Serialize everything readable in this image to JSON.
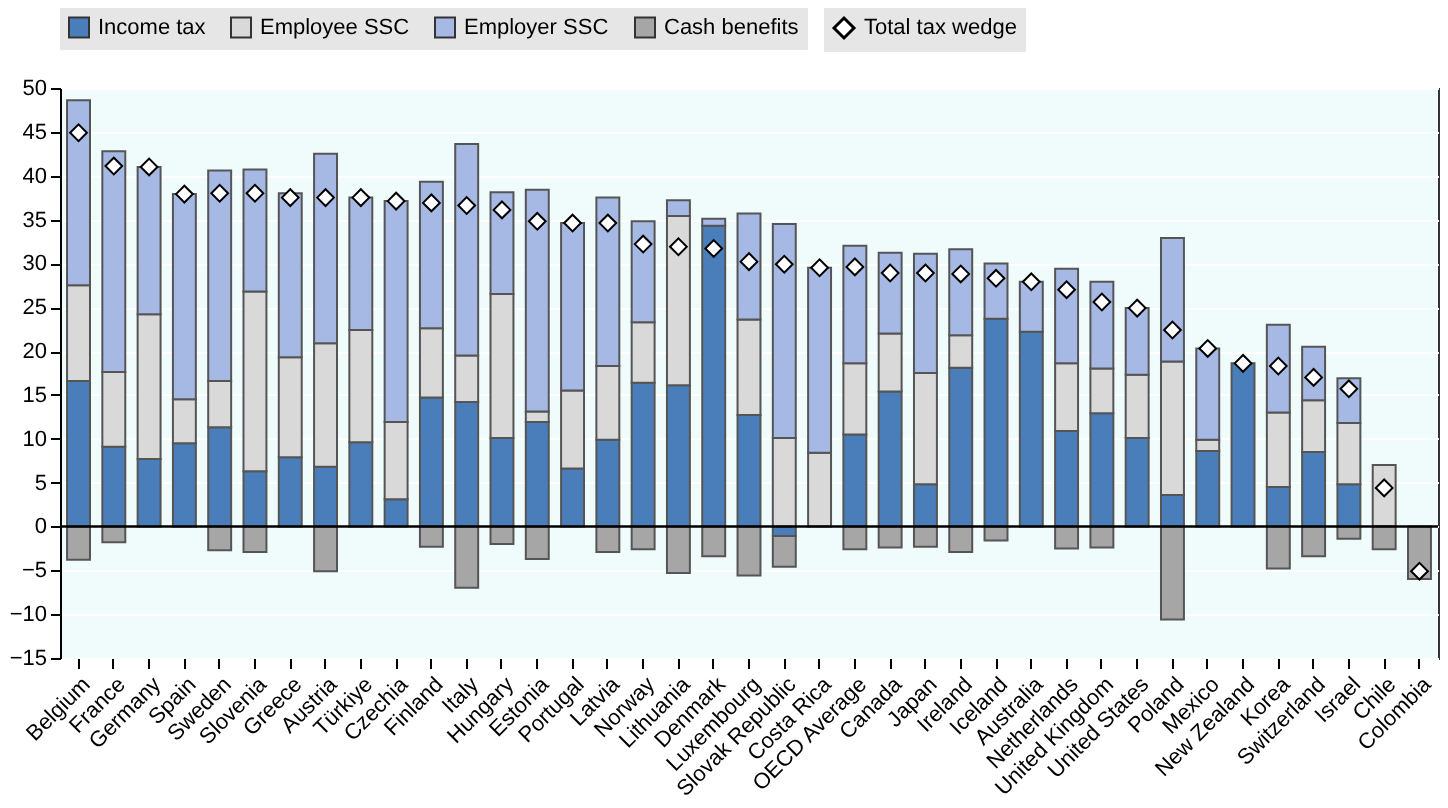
{
  "chart_data": {
    "type": "bar",
    "stacked": true,
    "ylim": [
      -15,
      50
    ],
    "yticks": [
      -15,
      -10,
      -5,
      0,
      5,
      10,
      15,
      20,
      25,
      30,
      35,
      40,
      45,
      50
    ],
    "grid": "y",
    "legend": "top",
    "categories": [
      "Belgium",
      "France",
      "Germany",
      "Spain",
      "Sweden",
      "Slovenia",
      "Greece",
      "Austria",
      "Türkiye",
      "Czechia",
      "Finland",
      "Italy",
      "Hungary",
      "Estonia",
      "Portugal",
      "Latvia",
      "Norway",
      "Lithuania",
      "Denmark",
      "Luxembourg",
      "Slovak Republic",
      "Costa Rica",
      "OECD Average",
      "Canada",
      "Japan",
      "Ireland",
      "Iceland",
      "Australia",
      "Netherlands",
      "United Kingdom",
      "United States",
      "Poland",
      "Mexico",
      "New Zealand",
      "Korea",
      "Switzerland",
      "Israel",
      "Chile",
      "Colombia"
    ],
    "series": [
      {
        "name": "Income tax",
        "type": "bar",
        "color": "#4a7ebb",
        "values": [
          16.6,
          9.1,
          7.7,
          9.5,
          11.3,
          6.3,
          7.9,
          6.8,
          9.6,
          3.1,
          14.7,
          14.2,
          10.1,
          11.9,
          6.6,
          9.9,
          16.4,
          16.1,
          34.3,
          12.7,
          -1.1,
          null,
          10.5,
          15.4,
          4.8,
          18.1,
          23.7,
          22.2,
          10.9,
          12.9,
          10.1,
          3.6,
          8.6,
          18.6,
          4.5,
          8.5,
          4.8,
          null,
          null
        ]
      },
      {
        "name": "Employee SSC",
        "type": "bar",
        "color": "#d9d9d9",
        "values": [
          10.9,
          8.5,
          16.5,
          5.0,
          5.3,
          20.5,
          11.4,
          14.1,
          12.8,
          8.8,
          7.9,
          5.3,
          16.4,
          1.2,
          8.9,
          8.4,
          6.9,
          19.3,
          null,
          10.9,
          10.1,
          8.4,
          8.1,
          6.6,
          12.7,
          3.7,
          null,
          null,
          7.7,
          5.1,
          7.2,
          15.2,
          1.3,
          null,
          8.5,
          5.9,
          7.0,
          7.0,
          null
        ]
      },
      {
        "name": "Employer SSC",
        "type": "bar",
        "color": "#a6b9e4",
        "values": [
          21.1,
          25.2,
          16.8,
          23.4,
          24.0,
          13.9,
          18.7,
          21.6,
          15.1,
          25.2,
          16.7,
          24.1,
          11.6,
          25.3,
          19.1,
          19.2,
          11.5,
          1.8,
          0.8,
          12.1,
          24.4,
          21.1,
          13.4,
          9.2,
          13.6,
          9.8,
          6.3,
          5.7,
          10.8,
          9.9,
          7.6,
          14.1,
          10.4,
          null,
          10.0,
          6.1,
          5.1,
          null,
          null
        ]
      },
      {
        "name": "Cash benefits",
        "type": "bar",
        "color": "#a6a6a6",
        "values": [
          -3.8,
          -1.8,
          null,
          null,
          -2.7,
          -2.9,
          null,
          -5.1,
          null,
          null,
          -2.3,
          -7.0,
          -2.0,
          -3.7,
          null,
          -2.9,
          -2.6,
          -5.3,
          -3.4,
          -5.6,
          -3.5,
          null,
          -2.6,
          -2.4,
          -2.3,
          -2.9,
          -1.6,
          null,
          -2.5,
          -2.4,
          null,
          -10.6,
          null,
          null,
          -4.8,
          -3.4,
          -1.4,
          -2.6,
          -6.0
        ]
      },
      {
        "name": "Total tax wedge",
        "type": "scatter",
        "marker": "diamond",
        "color": "#ffffff",
        "values": [
          44.9,
          41.1,
          41.0,
          37.9,
          38.0,
          38.0,
          37.5,
          37.5,
          37.5,
          37.1,
          36.9,
          36.6,
          36.1,
          34.8,
          34.6,
          34.6,
          32.2,
          31.9,
          31.7,
          30.2,
          29.9,
          29.5,
          29.6,
          28.9,
          28.9,
          28.8,
          28.3,
          27.9,
          27.0,
          25.6,
          24.9,
          22.4,
          20.3,
          18.6,
          18.3,
          17.0,
          15.7,
          4.4,
          -5.1
        ]
      }
    ]
  }
}
